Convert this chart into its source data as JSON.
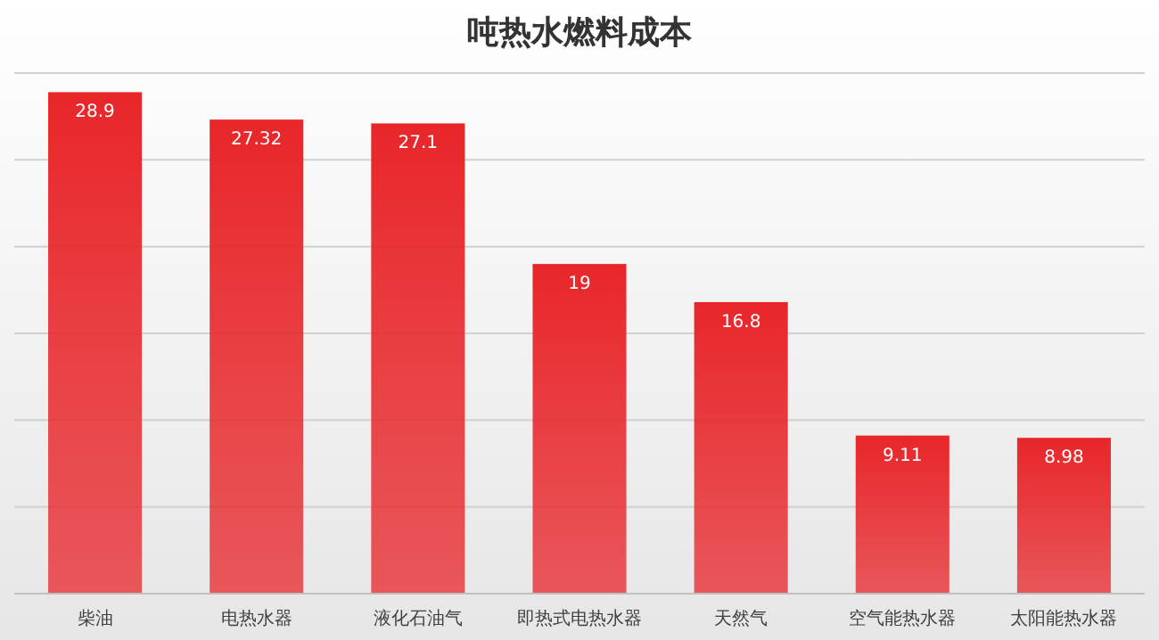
{
  "chart_data": {
    "type": "bar",
    "title": "吨热水燃料成本",
    "categories": [
      "柴油",
      "电热水器",
      "液化石油气",
      "即热式电热水器",
      "天然气",
      "空气能热水器",
      "太阳能热水器"
    ],
    "values": [
      28.9,
      27.32,
      27.1,
      19,
      16.8,
      9.11,
      8.98
    ],
    "color": "#e8262a",
    "ylim": [
      0,
      30
    ],
    "yticks": [
      {
        "value": 0,
        "label": null
      },
      {
        "value": 5,
        "label": null
      },
      {
        "value": 10,
        "label": null
      },
      {
        "value": 15,
        "label": null
      },
      {
        "value": 20,
        "label": null
      },
      {
        "value": 25,
        "label": null
      },
      {
        "value": 30,
        "label": null
      }
    ],
    "grid": "y",
    "data_labels": true
  }
}
